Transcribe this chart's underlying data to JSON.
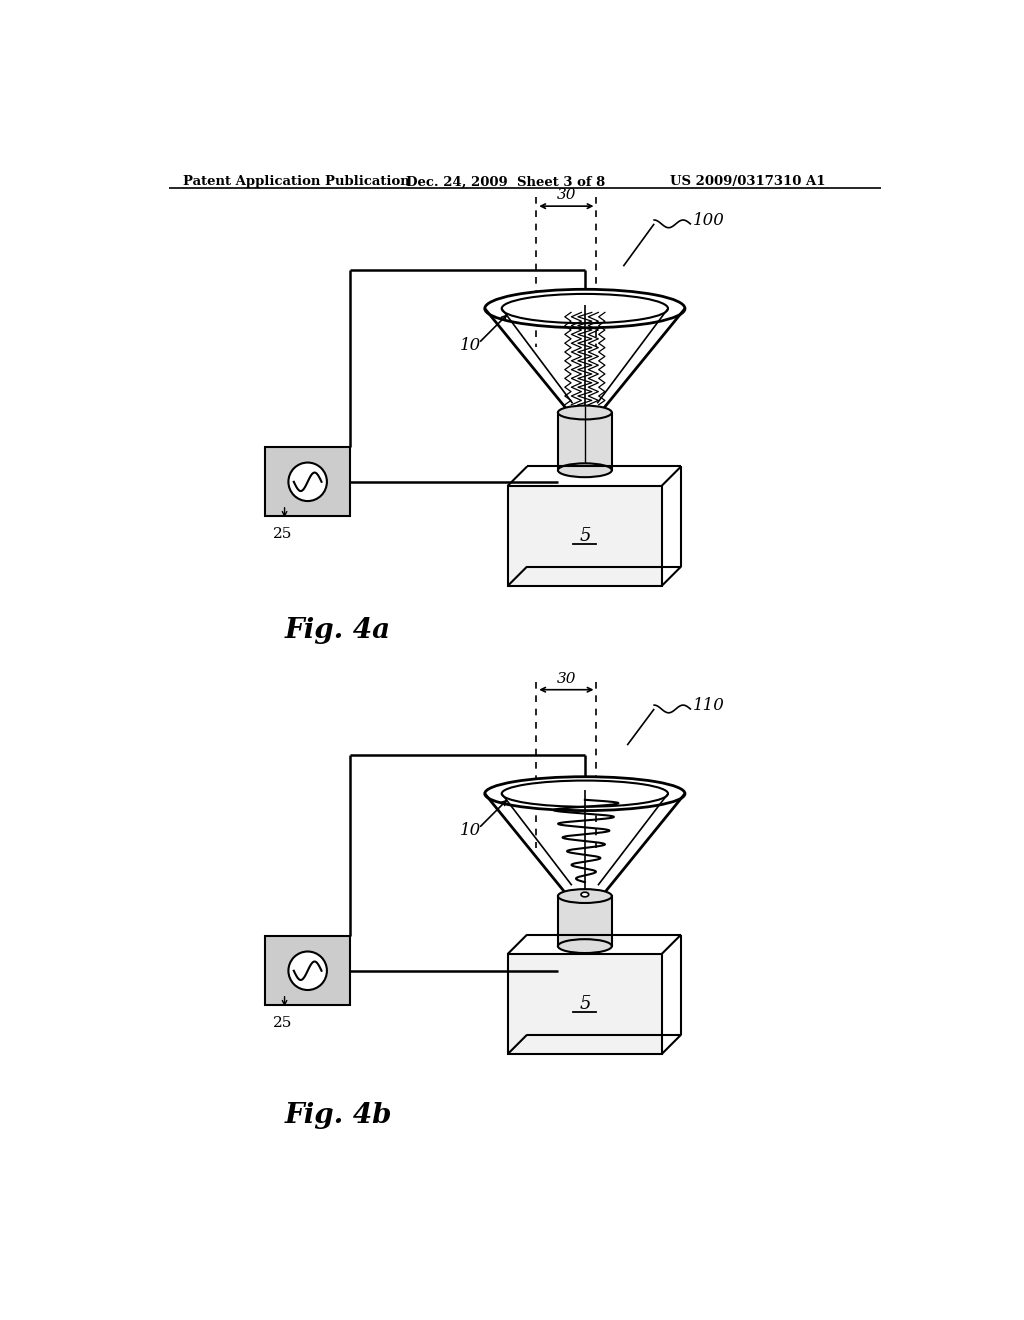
{
  "bg_color": "#ffffff",
  "line_color": "#000000",
  "gray_color": "#cccccc",
  "header_left": "Patent Application Publication",
  "header_mid": "Dec. 24, 2009  Sheet 3 of 8",
  "header_right": "US 2009/0317310 A1",
  "fig4a_label": "Fig. 4a",
  "fig4b_label": "Fig. 4b",
  "label_100": "100",
  "label_110": "110",
  "label_30": "30",
  "label_10a": "10",
  "label_10b": "10",
  "label_25a": "25",
  "label_25b": "25",
  "label_5a": "5",
  "label_5b": "5"
}
